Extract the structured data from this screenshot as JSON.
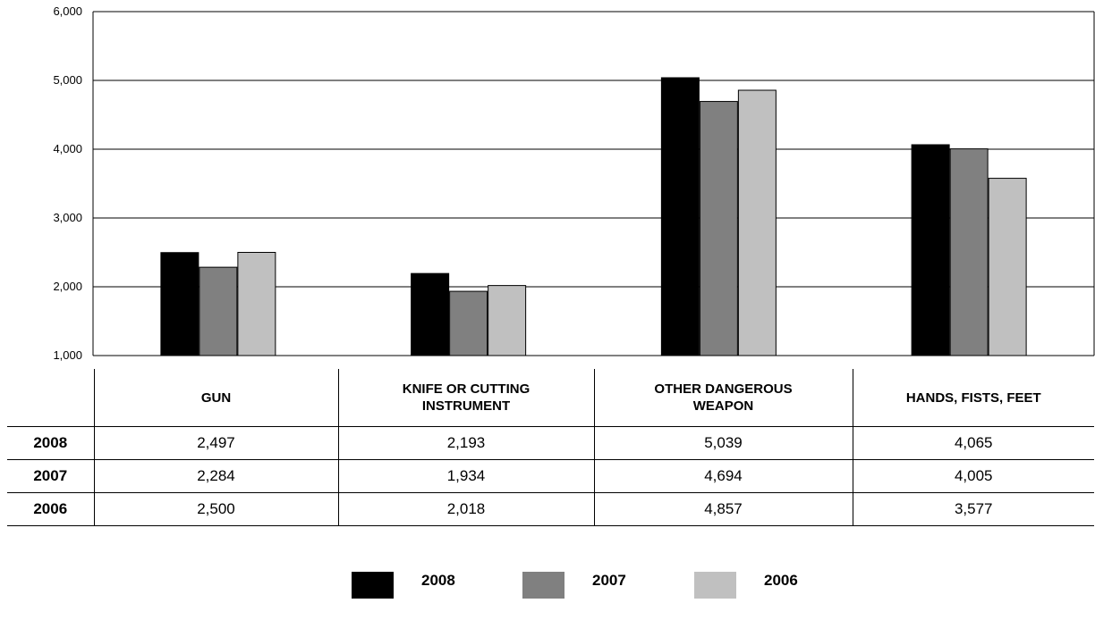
{
  "chart_data": {
    "type": "bar",
    "categories": [
      "GUN",
      "KNIFE OR CUTTING INSTRUMENT",
      "OTHER DANGEROUS WEAPON",
      "HANDS, FISTS, FEET"
    ],
    "series": [
      {
        "name": "2008",
        "values": [
          2497,
          2193,
          5039,
          4065
        ],
        "color": "#000000"
      },
      {
        "name": "2007",
        "values": [
          2284,
          1934,
          4694,
          4005
        ],
        "color": "#808080"
      },
      {
        "name": "2006",
        "values": [
          2500,
          2018,
          4857,
          3577
        ],
        "color": "#c0c0c0"
      }
    ],
    "ylim": [
      1000,
      6000
    ],
    "yticks": [
      "1,000",
      "2,000",
      "3,000",
      "4,000",
      "5,000",
      "6,000"
    ],
    "grid": true,
    "legend_position": "bottom"
  },
  "table": {
    "headers": [
      "GUN",
      "KNIFE OR CUTTING INSTRUMENT",
      "OTHER DANGEROUS WEAPON",
      "HANDS, FISTS, FEET"
    ],
    "rows": [
      {
        "year": "2008",
        "cells": [
          "2,497",
          "2,193",
          "5,039",
          "4,065"
        ]
      },
      {
        "year": "2007",
        "cells": [
          "2,284",
          "1,934",
          "4,694",
          "4,005"
        ]
      },
      {
        "year": "2006",
        "cells": [
          "2,500",
          "2,018",
          "4,857",
          "3,577"
        ]
      }
    ]
  },
  "legend": [
    {
      "label": "2008",
      "color": "#000000"
    },
    {
      "label": "2007",
      "color": "#808080"
    },
    {
      "label": "2006",
      "color": "#c0c0c0"
    }
  ]
}
